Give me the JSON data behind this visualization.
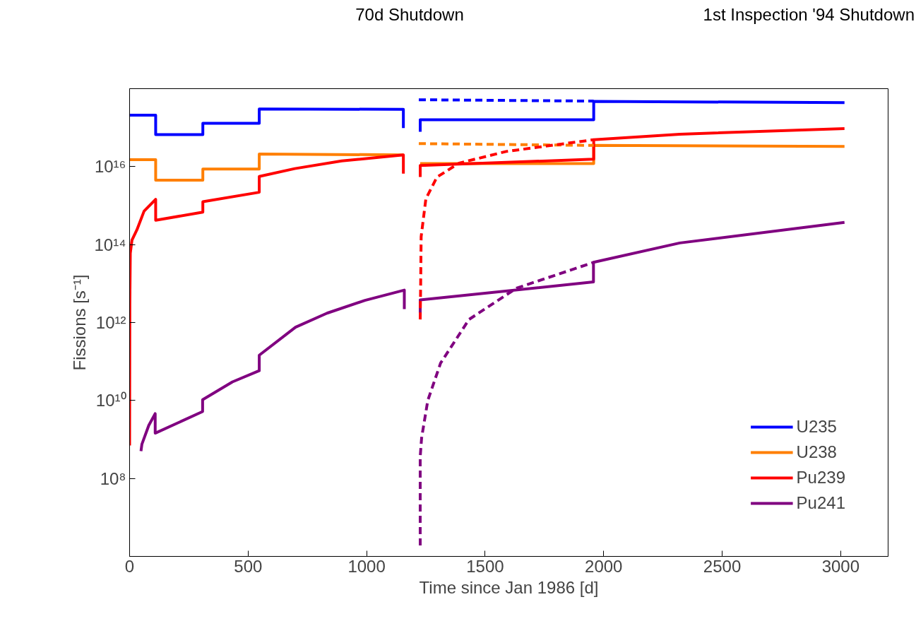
{
  "chart_data": {
    "type": "line",
    "xlabel": "Time since Jan 1986 [d]",
    "ylabel": "Fissions [s⁻¹]",
    "annotations": [
      "70d Shutdown",
      "1st Inspection '94 Shutdown"
    ],
    "xlim": [
      0,
      3200
    ],
    "xticks": [
      0,
      500,
      1000,
      1500,
      2000,
      2500,
      3000
    ],
    "ylim": [
      1000000.0,
      1e+18
    ],
    "log": true,
    "yticks": [
      {
        "value": 100000000.0,
        "label": "10⁸"
      },
      {
        "value": 10000000000.0,
        "label": "10¹⁰"
      },
      {
        "value": 1000000000000.0,
        "label": "10¹²"
      },
      {
        "value": 100000000000000.0,
        "label": "10¹⁴"
      },
      {
        "value": 1e+16,
        "label": "10¹⁶"
      }
    ],
    "grid": false,
    "legend": "bottom right",
    "series": [
      {
        "name": "U235",
        "color": "#0000ff",
        "line_style": "solid",
        "x": [
          0,
          110,
          110,
          309,
          309,
          547,
          547,
          1155,
          1155,
          1190,
          1226,
          1226,
          1958,
          1958,
          3016
        ],
        "values": [
          2.1e+17,
          2.1e+17,
          6.6e+16,
          6.6e+16,
          1.3e+17,
          1.3e+17,
          3e+17,
          2.95e+17,
          9.8e+16,
          null,
          7.8e+16,
          1.6e+17,
          1.6e+17,
          4.7e+17,
          4.4e+17
        ]
      },
      {
        "name": "U238",
        "color": "#ff7f00",
        "line_style": "solid",
        "x": [
          0,
          110,
          110,
          309,
          309,
          547,
          547,
          1155,
          1190,
          1226,
          1958,
          1958,
          3016
        ],
        "values": [
          1.5e+16,
          1.5e+16,
          4500000000000000.0,
          4500000000000000.0,
          8700000000000000.0,
          8700000000000000.0,
          2.1e+16,
          2e+16,
          null,
          1.2e+16,
          1.2e+16,
          3.5e+16,
          3.3e+16
        ]
      },
      {
        "name": "Pu239",
        "color": "#ff0000",
        "line_style": "solid",
        "x": [
          0,
          1,
          3,
          10,
          31,
          61,
          110,
          110,
          309,
          309,
          547,
          547,
          697,
          895,
          1155,
          1155,
          1190,
          1226,
          1226,
          1958,
          1958,
          2321,
          3016
        ],
        "values": [
          700000000.0,
          3000000000000.0,
          60000000000000.0,
          130000000000000.0,
          240000000000000.0,
          720000000000000.0,
          1450000000000000.0,
          420000000000000.0,
          680000000000000.0,
          1260000000000000.0,
          2200000000000000.0,
          5600000000000000.0,
          8900000000000000.0,
          1.4e+16,
          2e+16,
          6600000000000000.0,
          null,
          5400000000000000.0,
          1.07e+16,
          1.55e+16,
          4.9e+16,
          6.8e+16,
          9.5e+16
        ]
      },
      {
        "name": "Pu241",
        "color": "#800080",
        "line_style": "solid",
        "x": [
          48,
          52,
          81,
          108,
          108,
          308,
          308,
          434,
          547,
          547,
          700,
          833,
          993,
          1159,
          1159,
          1190,
          1226,
          1226,
          1957,
          1957,
          2321,
          3016
        ],
        "values": [
          500000000.0,
          760000000.0,
          2300000000.0,
          4600000000.0,
          1450000000.0,
          5200000000.0,
          10500000000.0,
          30000000000.0,
          58000000000.0,
          145000000000.0,
          760000000000.0,
          1740000000000.0,
          3700000000000.0,
          6800000000000.0,
          2200000000000.0,
          null,
          1740000000000.0,
          3800000000000.0,
          11000000000000.0,
          35000000000000.0,
          110000000000000.0,
          370000000000000.0
        ]
      },
      {
        "color": "#0000ff",
        "line_style": "dashed",
        "x": [
          1220,
          1958
        ],
        "values": [
          5.2e+17,
          4.8e+17
        ]
      },
      {
        "color": "#ff7f00",
        "line_style": "dashed",
        "x": [
          1220,
          1958
        ],
        "values": [
          3.9e+16,
          3.5e+16
        ]
      },
      {
        "color": "#ff0000",
        "line_style": "dashed",
        "x": [
          1226,
          1228,
          1230,
          1250,
          1297,
          1390,
          1589,
          1958
        ],
        "values": [
          1200000000000.0,
          10000000000000.0,
          160000000000000.0,
          1500000000000000.0,
          5400000000000000.0,
          1.23e+16,
          2.45e+16,
          4.9e+16
        ]
      },
      {
        "color": "#800080",
        "line_style": "dashed",
        "x": [
          1226,
          1226,
          1232,
          1258,
          1312,
          1432,
          1632,
          1958
        ],
        "values": [
          1900000.0,
          360000000.0,
          1100000000.0,
          10000000000.0,
          91000000000.0,
          1200000000000.0,
          7600000000000.0,
          35000000000000.0
        ]
      }
    ]
  }
}
